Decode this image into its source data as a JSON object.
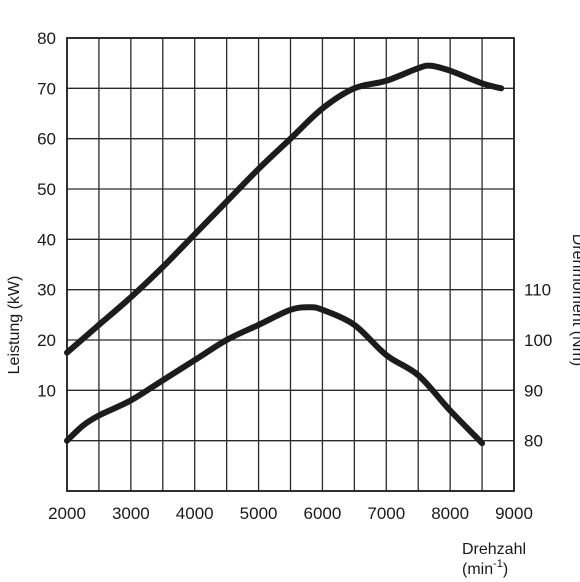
{
  "chart_data": {
    "type": "line",
    "xlabel": "Drehzahl",
    "xunit_base": "(min",
    "xunit_exp": "-1",
    "xunit_close": ")",
    "ylabel_left": "Leistung (kW)",
    "ylabel_right": "Drehmoment (Nm)",
    "xlim": [
      2000,
      9000
    ],
    "ylim_left": [
      -10,
      80
    ],
    "ylim_right": [
      70,
      160
    ],
    "grid": true,
    "x_ticks": [
      "2000",
      "3000",
      "4000",
      "5000",
      "6000",
      "7000",
      "8000",
      "9000"
    ],
    "y_left_ticks": [
      {
        "value": 10,
        "label": "10"
      },
      {
        "value": 20,
        "label": "20"
      },
      {
        "value": 30,
        "label": "30"
      },
      {
        "value": 40,
        "label": "40"
      },
      {
        "value": 50,
        "label": "50"
      },
      {
        "value": 60,
        "label": "60"
      },
      {
        "value": 70,
        "label": "70"
      },
      {
        "value": 80,
        "label": "80"
      }
    ],
    "y_right_ticks": [
      {
        "value": 80,
        "label": "80"
      },
      {
        "value": 90,
        "label": "90"
      },
      {
        "value": 100,
        "label": "100"
      },
      {
        "value": 110,
        "label": "110"
      }
    ],
    "series": [
      {
        "axis": "left",
        "x": [
          2000,
          2500,
          3000,
          3500,
          4000,
          4500,
          5000,
          5500,
          6000,
          6500,
          7000,
          7500,
          7700,
          8000,
          8500,
          8800
        ],
        "y": [
          17.5,
          23,
          28.5,
          34.5,
          41,
          47.5,
          54,
          60,
          66,
          70,
          71.5,
          74,
          74.5,
          73.5,
          71,
          70
        ]
      },
      {
        "axis": "right",
        "x": [
          2000,
          2250,
          2500,
          3000,
          3500,
          4000,
          4500,
          5000,
          5500,
          5800,
          6000,
          6500,
          7000,
          7500,
          8000,
          8500
        ],
        "y": [
          80,
          83,
          85,
          88,
          92,
          96,
          100,
          103,
          106,
          106.5,
          106,
          103,
          97,
          93,
          86,
          79.5
        ]
      }
    ]
  }
}
